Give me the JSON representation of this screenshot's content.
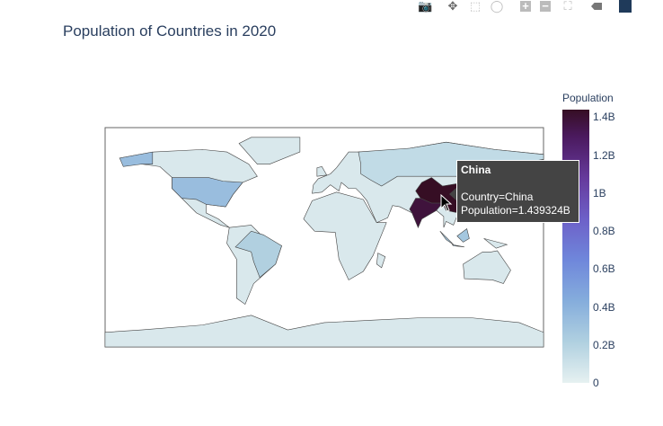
{
  "title": "Population of Countries in 2020",
  "modebar": [
    {
      "name": "camera-icon",
      "label": "Download plot as a png"
    },
    {
      "name": "pan-icon",
      "label": "Pan"
    },
    {
      "name": "box-select-icon",
      "label": "Box Select"
    },
    {
      "name": "lasso-select-icon",
      "label": "Lasso Select"
    },
    {
      "name": "zoom-in-icon",
      "label": "Zoom in"
    },
    {
      "name": "zoom-out-icon",
      "label": "Zoom out"
    },
    {
      "name": "reset-view-icon",
      "label": "Reset"
    },
    {
      "name": "hover-closest-icon",
      "label": "Show closest data on hover"
    },
    {
      "name": "plotly-logo-icon",
      "label": "Produced with Plotly"
    }
  ],
  "chart_data": {
    "type": "choropleth",
    "title": "Population of Countries in 2020",
    "projection": "equirectangular",
    "colorbar": {
      "title": "Population",
      "ticks": [
        "0",
        "0.2B",
        "0.4B",
        "0.6B",
        "0.8B",
        "1B",
        "1.2B",
        "1.4B"
      ],
      "range": [
        0,
        1.439324
      ],
      "colorscale": [
        [
          "0",
          "#e6f1f1"
        ],
        [
          "0.15",
          "#b0d0e0"
        ],
        [
          "0.3",
          "#85addc"
        ],
        [
          "0.45",
          "#6f87db"
        ],
        [
          "0.6",
          "#6d60c8"
        ],
        [
          "0.75",
          "#663a9c"
        ],
        [
          "0.9",
          "#4b1a5f"
        ],
        [
          "1",
          "#360e24"
        ]
      ]
    },
    "locations": [
      {
        "country": "China",
        "population_b": 1.439324
      },
      {
        "country": "India",
        "population_b": 1.38
      },
      {
        "country": "United States",
        "population_b": 0.331
      },
      {
        "country": "Indonesia",
        "population_b": 0.274
      },
      {
        "country": "Brazil",
        "population_b": 0.213
      },
      {
        "country": "Russia",
        "population_b": 0.146
      },
      {
        "country": "Other",
        "population_b": 0.03
      }
    ],
    "hover": {
      "title": "China",
      "lines": [
        "Country=China",
        "Population=1.439324B"
      ]
    }
  }
}
